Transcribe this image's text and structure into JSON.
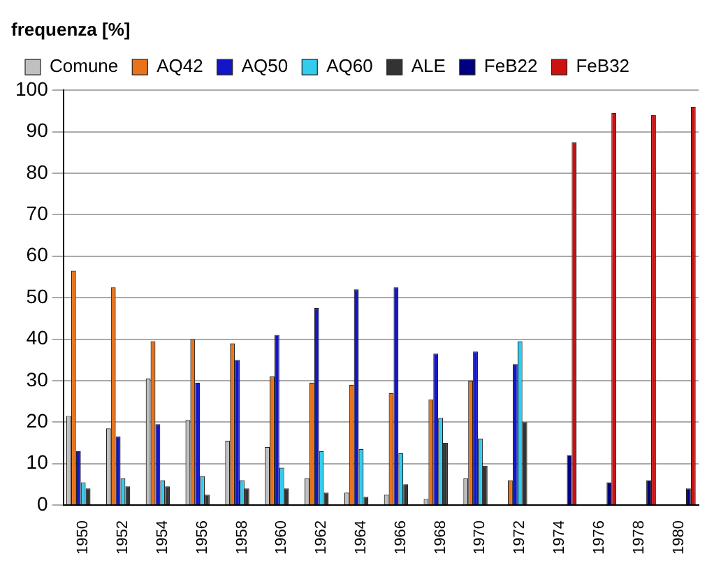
{
  "chart_data": {
    "type": "bar",
    "ylabel": "frequenza [%]",
    "categories": [
      "1950",
      "1952",
      "1954",
      "1956",
      "1958",
      "1960",
      "1962",
      "1964",
      "1966",
      "1968",
      "1970",
      "1972",
      "1974",
      "1976",
      "1978",
      "1980"
    ],
    "series": [
      {
        "name": "Comune",
        "color": "#c0c0c0",
        "values": [
          21.5,
          18.5,
          30.5,
          20.5,
          15.5,
          14,
          6.5,
          3,
          2.5,
          1.5,
          6.5,
          null,
          null,
          null,
          null,
          null
        ]
      },
      {
        "name": "AQ42",
        "color": "#e8731a",
        "values": [
          56.5,
          52.5,
          39.5,
          40,
          39,
          31,
          29.5,
          29,
          27,
          25.5,
          30,
          6,
          null,
          null,
          null,
          null
        ]
      },
      {
        "name": "AQ50",
        "color": "#1414c8",
        "values": [
          13,
          16.5,
          19.5,
          29.5,
          35,
          41,
          47.5,
          52,
          52.5,
          36.5,
          37,
          34,
          null,
          null,
          null,
          null
        ]
      },
      {
        "name": "AQ60",
        "color": "#33ccee",
        "values": [
          5.5,
          6.5,
          6,
          7,
          6,
          9,
          13,
          13.5,
          12.5,
          21,
          16,
          39.5,
          null,
          null,
          null,
          null
        ]
      },
      {
        "name": "ALE",
        "color": "#333333",
        "values": [
          4,
          4.5,
          4.5,
          2.5,
          4,
          4,
          3,
          2,
          5,
          15,
          9.5,
          20,
          null,
          null,
          null,
          null
        ]
      },
      {
        "name": "FeB22",
        "color": "#000080",
        "values": [
          null,
          null,
          null,
          null,
          null,
          null,
          null,
          null,
          null,
          null,
          null,
          null,
          12,
          5.5,
          6,
          4
        ]
      },
      {
        "name": "FeB32",
        "color": "#cc1111",
        "values": [
          null,
          null,
          null,
          null,
          null,
          null,
          null,
          null,
          null,
          null,
          null,
          null,
          87.5,
          94.5,
          94,
          96
        ]
      }
    ],
    "ylim": [
      0,
      100
    ],
    "yticks": [
      0,
      10,
      20,
      30,
      40,
      50,
      60,
      70,
      80,
      90,
      100
    ],
    "grid": "y",
    "legend": "top left"
  }
}
